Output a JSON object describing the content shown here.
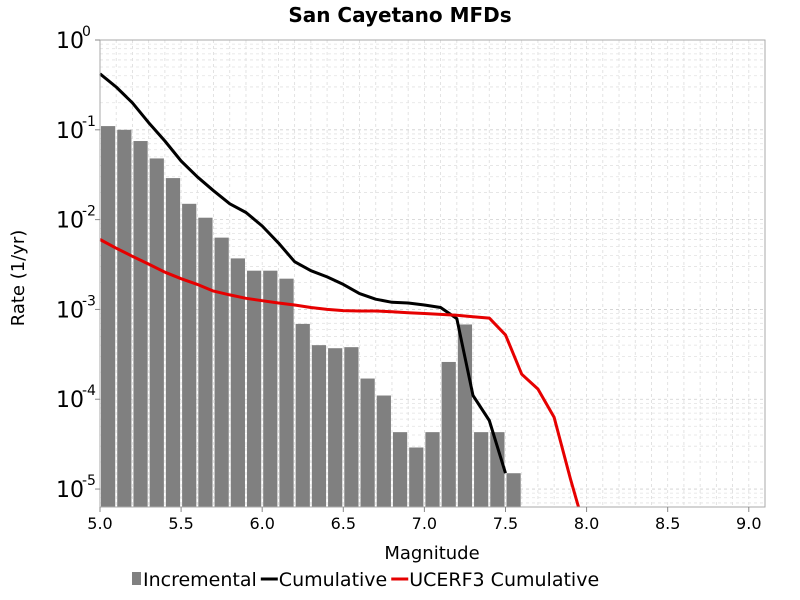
{
  "chart_data": {
    "type": "bar+line",
    "title": "San Cayetano MFDs",
    "xlabel": "Magnitude",
    "ylabel": "Rate (1/yr)",
    "xlim": [
      5.0,
      9.1
    ],
    "ylim_log10": [
      -5.2,
      0
    ],
    "yscale": "log",
    "grid": true,
    "legend_position": "bottom",
    "x_ticks": [
      "5.0",
      "5.5",
      "6.0",
      "6.5",
      "7.0",
      "7.5",
      "8.0",
      "8.5",
      "9.0"
    ],
    "y_ticks": [
      {
        "base": "10",
        "exp": "0",
        "value": 1
      },
      {
        "base": "10",
        "exp": "-1",
        "value": 0.1
      },
      {
        "base": "10",
        "exp": "-2",
        "value": 0.01
      },
      {
        "base": "10",
        "exp": "-3",
        "value": 0.001
      },
      {
        "base": "10",
        "exp": "-4",
        "value": 0.0001
      },
      {
        "base": "10",
        "exp": "-5",
        "value": 1e-05
      }
    ],
    "series": [
      {
        "name": "Incremental",
        "kind": "bar",
        "color": "#808080",
        "bin_width": 0.1,
        "x": [
          5.05,
          5.15,
          5.25,
          5.35,
          5.45,
          5.55,
          5.65,
          5.75,
          5.85,
          5.95,
          6.05,
          6.15,
          6.25,
          6.35,
          6.45,
          6.55,
          6.65,
          6.75,
          6.85,
          6.95,
          7.05,
          7.15,
          7.25,
          7.35,
          7.45,
          7.55
        ],
        "values": [
          0.11,
          0.1,
          0.075,
          0.048,
          0.029,
          0.015,
          0.0105,
          0.0063,
          0.0037,
          0.0027,
          0.0027,
          0.0022,
          0.00069,
          0.0004,
          0.00037,
          0.00038,
          0.00017,
          0.00011,
          4.3e-05,
          2.9e-05,
          4.3e-05,
          0.00026,
          0.00068,
          4.3e-05,
          4.3e-05,
          1.5e-05
        ]
      },
      {
        "name": "Cumulative",
        "kind": "line",
        "color": "#000000",
        "x": [
          5.0,
          5.1,
          5.2,
          5.3,
          5.4,
          5.5,
          5.6,
          5.7,
          5.8,
          5.9,
          6.0,
          6.1,
          6.2,
          6.3,
          6.4,
          6.5,
          6.6,
          6.7,
          6.8,
          6.9,
          7.0,
          7.1,
          7.2,
          7.3,
          7.4,
          7.5
        ],
        "values": [
          0.42,
          0.3,
          0.2,
          0.12,
          0.075,
          0.045,
          0.03,
          0.021,
          0.015,
          0.012,
          0.0085,
          0.0055,
          0.0034,
          0.0027,
          0.0023,
          0.0019,
          0.0015,
          0.0013,
          0.0012,
          0.00118,
          0.00112,
          0.00105,
          0.00079,
          0.00011,
          5.8e-05,
          1.5e-05
        ]
      },
      {
        "name": "UCERF3 Cumulative",
        "kind": "line",
        "color": "#e60000",
        "x": [
          5.0,
          5.1,
          5.2,
          5.3,
          5.4,
          5.5,
          5.6,
          5.7,
          5.8,
          5.9,
          6.0,
          6.1,
          6.2,
          6.3,
          6.4,
          6.5,
          6.6,
          6.7,
          6.8,
          6.9,
          7.0,
          7.1,
          7.2,
          7.3,
          7.4,
          7.5,
          7.6,
          7.7,
          7.8,
          7.9,
          7.95
        ],
        "values": [
          0.006,
          0.0048,
          0.0039,
          0.0032,
          0.0026,
          0.0022,
          0.0019,
          0.0016,
          0.00145,
          0.00133,
          0.00125,
          0.00118,
          0.00112,
          0.00105,
          0.001,
          0.00097,
          0.00096,
          0.00096,
          0.00094,
          0.00092,
          0.0009,
          0.00088,
          0.00086,
          0.00083,
          0.0008,
          0.00052,
          0.00019,
          0.00013,
          6.3e-05,
          1.3e-05,
          6.3e-06
        ]
      }
    ]
  }
}
